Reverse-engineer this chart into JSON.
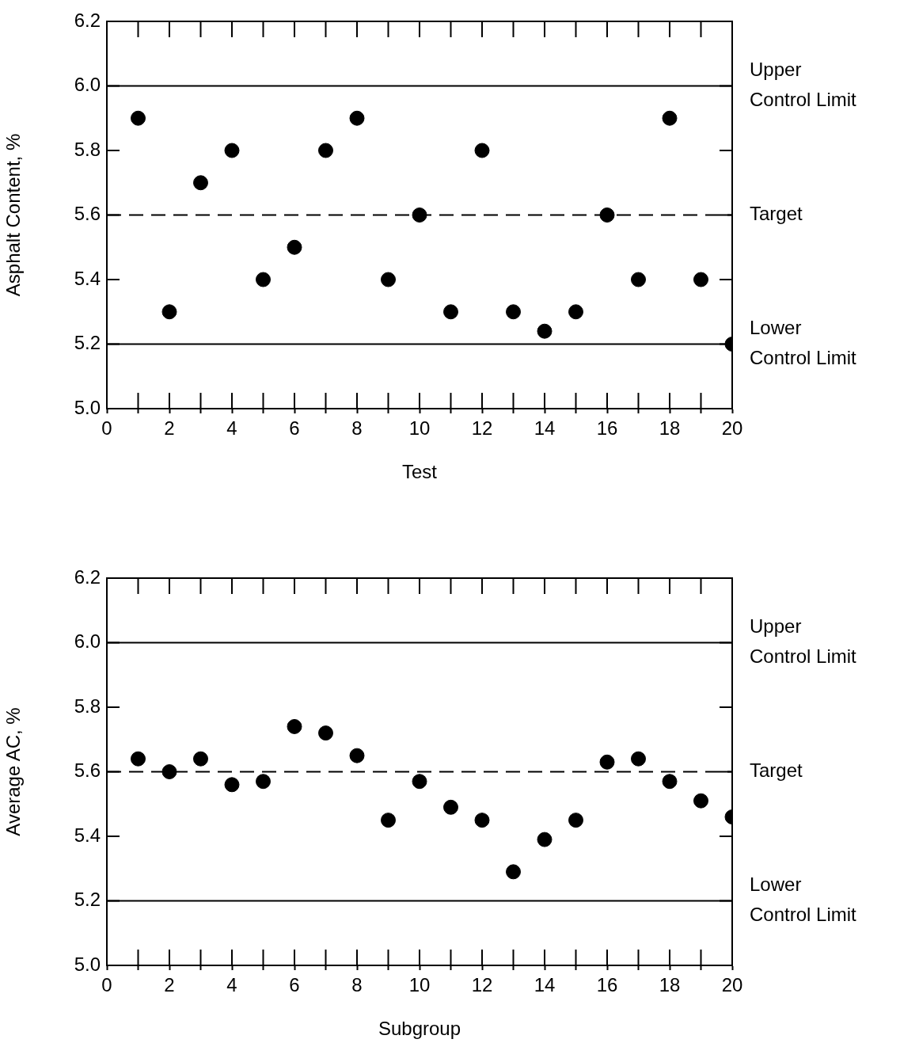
{
  "chart_data": [
    {
      "type": "scatter",
      "xlabel": "Test",
      "ylabel": "Asphalt Content, %",
      "marker": "circle",
      "grid": false,
      "legend": false,
      "x": [
        1,
        2,
        3,
        4,
        5,
        6,
        7,
        8,
        9,
        10,
        11,
        12,
        13,
        14,
        15,
        16,
        17,
        18,
        19,
        20
      ],
      "series": [
        {
          "color": "#000000",
          "values": [
            5.9,
            5.3,
            5.7,
            5.8,
            5.4,
            5.5,
            5.8,
            5.9,
            5.4,
            5.6,
            5.3,
            5.8,
            5.3,
            5.24,
            5.3,
            5.6,
            5.4,
            5.9,
            5.4,
            5.2
          ]
        }
      ],
      "xlim": [
        0,
        20
      ],
      "xticks": [
        0,
        {
          "value": 1,
          "label": null
        },
        2,
        {
          "value": 3,
          "label": null
        },
        4,
        {
          "value": 5,
          "label": null
        },
        6,
        {
          "value": 7,
          "label": null
        },
        8,
        {
          "value": 9,
          "label": null
        },
        10,
        {
          "value": 11,
          "label": null
        },
        12,
        {
          "value": 13,
          "label": null
        },
        14,
        {
          "value": 15,
          "label": null
        },
        16,
        {
          "value": 17,
          "label": null
        },
        18,
        {
          "value": 19,
          "label": null
        },
        20
      ],
      "ylim": [
        5.0,
        6.2
      ],
      "yticks": [
        "5.0",
        5.2,
        5.4,
        5.6,
        5.8,
        "6.0",
        6.2
      ],
      "ref_lines": [
        {
          "axis": "y",
          "value": 6.0,
          "label": "Upper Control Limit",
          "line_style": "solid"
        },
        {
          "axis": "y",
          "value": 5.6,
          "label": "Target",
          "line_style": "dashed"
        },
        {
          "axis": "y",
          "value": 5.2,
          "label": "Lower Control Limit",
          "line_style": "solid"
        }
      ]
    },
    {
      "type": "scatter",
      "xlabel": "Subgroup",
      "ylabel": "Average AC, %",
      "marker": "circle",
      "grid": false,
      "legend": false,
      "x": [
        1,
        2,
        3,
        4,
        5,
        6,
        7,
        8,
        9,
        10,
        11,
        12,
        13,
        14,
        15,
        16,
        17,
        18,
        19,
        20
      ],
      "series": [
        {
          "color": "#000000",
          "values": [
            5.64,
            5.6,
            5.64,
            5.56,
            5.57,
            5.74,
            5.72,
            5.65,
            5.45,
            5.57,
            5.49,
            5.45,
            5.29,
            5.39,
            5.45,
            5.63,
            5.64,
            5.57,
            5.51,
            5.46
          ]
        }
      ],
      "xlim": [
        0,
        20
      ],
      "xticks": [
        0,
        {
          "value": 1,
          "label": null
        },
        2,
        {
          "value": 3,
          "label": null
        },
        4,
        {
          "value": 5,
          "label": null
        },
        6,
        {
          "value": 7,
          "label": null
        },
        8,
        {
          "value": 9,
          "label": null
        },
        10,
        {
          "value": 11,
          "label": null
        },
        12,
        {
          "value": 13,
          "label": null
        },
        14,
        {
          "value": 15,
          "label": null
        },
        16,
        {
          "value": 17,
          "label": null
        },
        18,
        {
          "value": 19,
          "label": null
        },
        20
      ],
      "ylim": [
        5.0,
        6.2
      ],
      "yticks": [
        "5.0",
        5.2,
        5.4,
        5.6,
        5.8,
        "6.0",
        6.2
      ],
      "ref_lines": [
        {
          "axis": "y",
          "value": 6.0,
          "label": "Upper Control Limit",
          "line_style": "solid"
        },
        {
          "axis": "y",
          "value": 5.6,
          "label": "Target",
          "line_style": "dashed"
        },
        {
          "axis": "y",
          "value": 5.2,
          "label": "Lower Control Limit",
          "line_style": "solid"
        }
      ]
    }
  ]
}
